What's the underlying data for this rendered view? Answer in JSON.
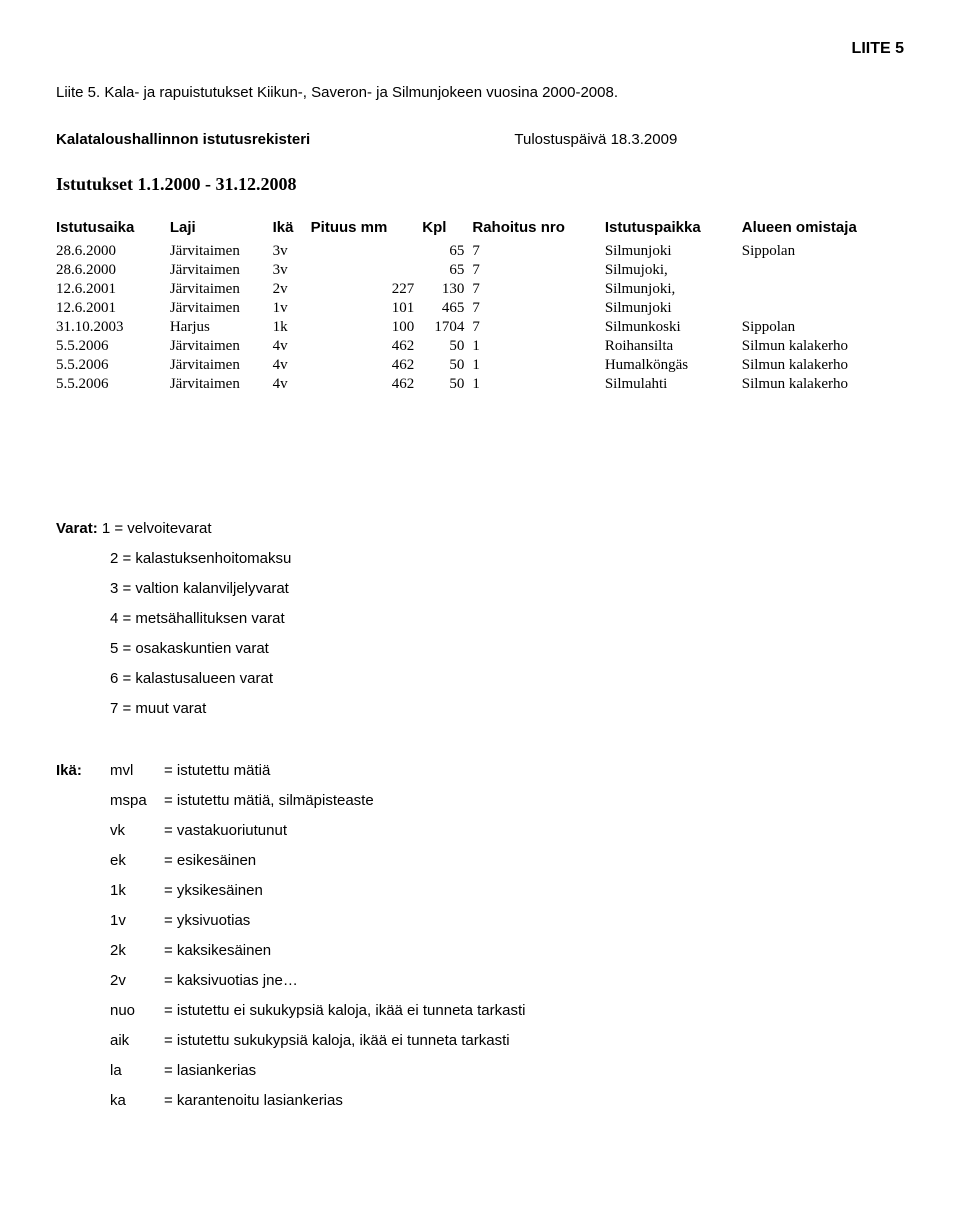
{
  "header_label": "LIITE 5",
  "intro": "Liite 5. Kala- ja rapuistutukset Kiikun-, Saveron- ja Silmunjokeen vuosina 2000-2008.",
  "registry_label": "Kalataloushallinnon istutusrekisteri",
  "print_date_label": "Tulostuspäivä 18.3.2009",
  "range_label": "Istutukset 1.1.2000 - 31.12.2008",
  "table": {
    "columns": [
      "Istutusaika",
      "Laji",
      "Ikä",
      "Pituus mm",
      "Kpl",
      "Rahoitus nro",
      "Istutuspaikka",
      "Alueen omistaja"
    ],
    "rows": [
      [
        "28.6.2000",
        "Järvitaimen",
        "3v",
        "",
        "65",
        "7",
        "Silmunjoki",
        "Sippolan"
      ],
      [
        "28.6.2000",
        "Järvitaimen",
        "3v",
        "",
        "65",
        "7",
        "Silmujoki,",
        ""
      ],
      [
        "12.6.2001",
        "Järvitaimen",
        "2v",
        "227",
        "130",
        "7",
        "Silmunjoki,",
        ""
      ],
      [
        "12.6.2001",
        "Järvitaimen",
        "1v",
        "101",
        "465",
        "7",
        "Silmunjoki",
        ""
      ],
      [
        "31.10.2003",
        "Harjus",
        "1k",
        "100",
        "1704",
        "7",
        "Silmunkoski",
        "Sippolan"
      ],
      [
        "5.5.2006",
        "Järvitaimen",
        "4v",
        "462",
        "50",
        "1",
        "Roihansilta",
        "Silmun kalakerho"
      ],
      [
        "5.5.2006",
        "Järvitaimen",
        "4v",
        "462",
        "50",
        "1",
        "Humalköngäs",
        "Silmun kalakerho"
      ],
      [
        "5.5.2006",
        "Järvitaimen",
        "4v",
        "462",
        "50",
        "1",
        "Silmulahti",
        "Silmun kalakerho"
      ]
    ]
  },
  "varat": {
    "label": "Varat:",
    "items": [
      "1 = velvoitevarat",
      "2 = kalastuksenhoitomaksu",
      "3 = valtion kalanviljelyvarat",
      "4 = metsähallituksen varat",
      "5 = osakaskuntien varat",
      "6 = kalastusalueen varat",
      "7 = muut varat"
    ]
  },
  "ika": {
    "label": "Ikä:",
    "items": [
      {
        "code": "mvl",
        "desc": "= istutettu mätiä"
      },
      {
        "code": "mspa",
        "desc": "= istutettu mätiä, silmäpisteaste"
      },
      {
        "code": "vk",
        "desc": "= vastakuoriutunut"
      },
      {
        "code": "ek",
        "desc": "= esikesäinen"
      },
      {
        "code": "1k",
        "desc": "= yksikesäinen"
      },
      {
        "code": "1v",
        "desc": "= yksivuotias"
      },
      {
        "code": "2k",
        "desc": "= kaksikesäinen"
      },
      {
        "code": "2v",
        "desc": "= kaksivuotias jne…"
      },
      {
        "code": "nuo",
        "desc": "= istutettu ei sukukypsiä kaloja, ikää ei tunneta tarkasti"
      },
      {
        "code": "aik",
        "desc": "= istutettu sukukypsiä kaloja, ikää ei tunneta tarkasti"
      },
      {
        "code": "la",
        "desc": "= lasiankerias"
      },
      {
        "code": "ka",
        "desc": "= karantenoitu lasiankerias"
      }
    ]
  }
}
